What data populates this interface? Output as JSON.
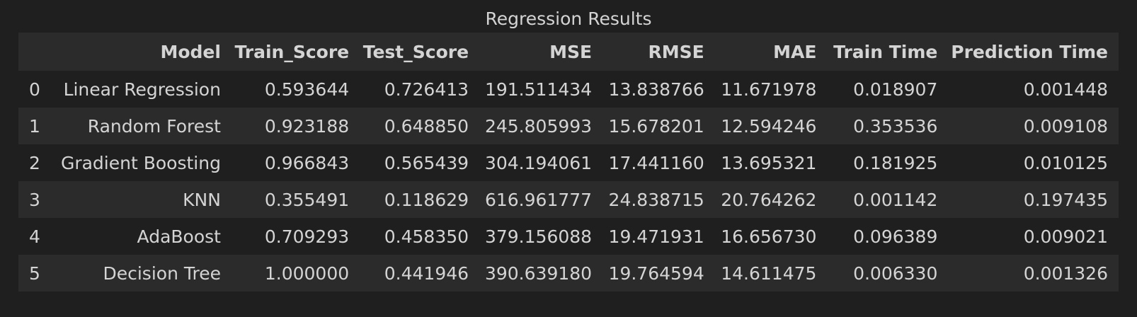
{
  "table": {
    "caption": "Regression Results",
    "columns": [
      "",
      "Model",
      "Train_Score",
      "Test_Score",
      "MSE",
      "RMSE",
      "MAE",
      "Train Time",
      "Prediction Time"
    ],
    "rows": [
      [
        "0",
        "Linear Regression",
        "0.593644",
        "0.726413",
        "191.511434",
        "13.838766",
        "11.671978",
        "0.018907",
        "0.001448"
      ],
      [
        "1",
        "Random Forest",
        "0.923188",
        "0.648850",
        "245.805993",
        "15.678201",
        "12.594246",
        "0.353536",
        "0.009108"
      ],
      [
        "2",
        "Gradient Boosting",
        "0.966843",
        "0.565439",
        "304.194061",
        "17.441160",
        "13.695321",
        "0.181925",
        "0.010125"
      ],
      [
        "3",
        "KNN",
        "0.355491",
        "0.118629",
        "616.961777",
        "24.838715",
        "20.764262",
        "0.001142",
        "0.197435"
      ],
      [
        "4",
        "AdaBoost",
        "0.709293",
        "0.458350",
        "379.156088",
        "19.471931",
        "16.656730",
        "0.096389",
        "0.009021"
      ],
      [
        "5",
        "Decision Tree",
        "1.000000",
        "0.441946",
        "390.639180",
        "19.764594",
        "14.611475",
        "0.006330",
        "0.001326"
      ]
    ]
  }
}
